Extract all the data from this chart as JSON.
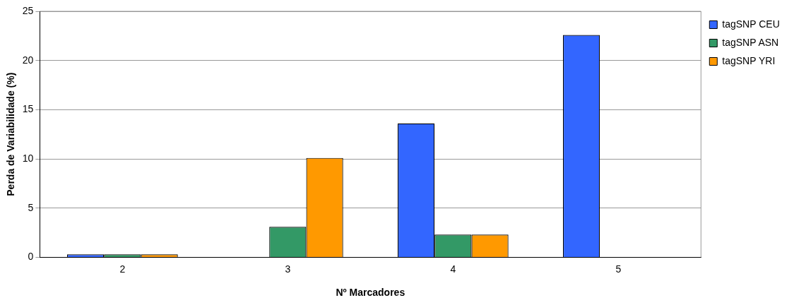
{
  "chart_data": {
    "type": "bar",
    "xlabel": "Nº Marcadores",
    "ylabel": "Perda de Variabilidade (%)",
    "categories": [
      "2",
      "3",
      "4",
      "5"
    ],
    "series": [
      {
        "name": "tagSNP CEU",
        "color": "#3366ff",
        "values": [
          0.3,
          0,
          13.6,
          22.6
        ]
      },
      {
        "name": "tagSNP ASN",
        "color": "#339966",
        "values": [
          0.3,
          3.1,
          2.3,
          0
        ]
      },
      {
        "name": "tagSNP YRI",
        "color": "#ff9900",
        "values": [
          0.3,
          10.1,
          2.3,
          0
        ]
      }
    ],
    "ylim": [
      0,
      25
    ],
    "yticks": [
      0,
      5,
      10,
      15,
      20,
      25
    ],
    "grid": "y",
    "legend": "top right"
  }
}
